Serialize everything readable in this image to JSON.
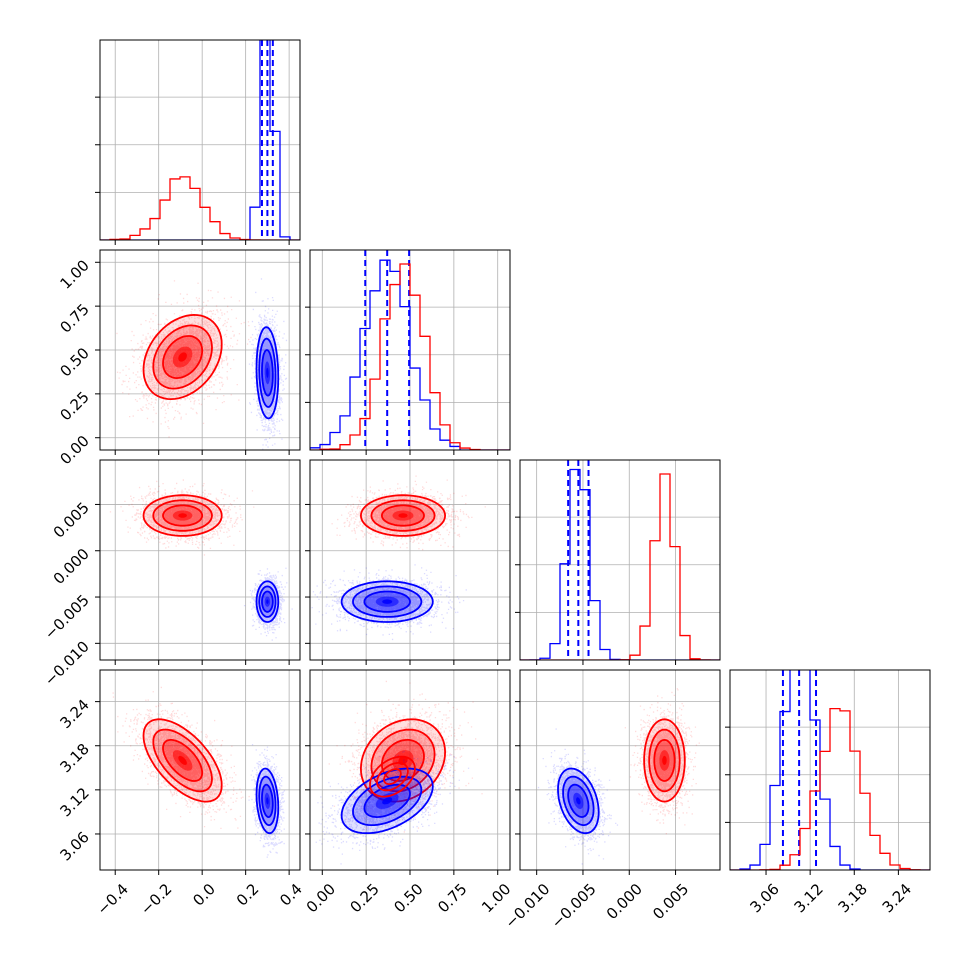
{
  "chart_data": {
    "type": "corner",
    "colors": {
      "primary": "#0000ff",
      "secondary": "#ff0000"
    },
    "parameters": [
      {
        "range": [
          -0.47,
          0.45
        ],
        "ticks": [
          -0.4,
          -0.2,
          0.0,
          0.2,
          0.4
        ],
        "tick_labels": [
          "−0.4",
          "−0.2",
          "0.0",
          "0.2",
          "0.4"
        ]
      },
      {
        "range": [
          -0.07,
          1.07
        ],
        "ticks": [
          0.0,
          0.25,
          0.5,
          0.75,
          1.0
        ],
        "tick_labels": [
          "0.00",
          "0.25",
          "0.50",
          "0.75",
          "1.00"
        ]
      },
      {
        "range": [
          -0.0118,
          0.0098
        ],
        "ticks": [
          -0.01,
          -0.005,
          0.0,
          0.005
        ],
        "tick_labels": [
          "−0.010",
          "−0.005",
          "0.000",
          "0.005"
        ]
      },
      {
        "range": [
          3.011,
          3.283
        ],
        "ticks": [
          3.06,
          3.12,
          3.18,
          3.24
        ],
        "tick_labels": [
          "3.06",
          "3.12",
          "3.18",
          "3.24"
        ]
      }
    ],
    "series": [
      {
        "color": "#0000ff",
        "means": [
          0.3,
          0.37,
          -0.0055,
          3.105
        ],
        "stds": [
          0.025,
          0.13,
          0.0011,
          0.022
        ],
        "quantiles": [
          [
            0.275,
            0.3,
            0.325
          ],
          [
            0.245,
            0.37,
            0.495
          ],
          [
            -0.0066,
            -0.0055,
            -0.0044
          ],
          [
            3.083,
            3.105,
            3.128
          ]
        ],
        "correlations": [
          [
            0,
            1,
            -0.1
          ],
          [
            0,
            2,
            0.0
          ],
          [
            0,
            3,
            -0.2
          ],
          [
            1,
            2,
            0.0
          ],
          [
            1,
            3,
            0.45
          ],
          [
            2,
            3,
            -0.35
          ]
        ]
      },
      {
        "color": "#ff0000",
        "means": [
          -0.09,
          0.46,
          0.0038,
          3.16
        ],
        "stds": [
          0.09,
          0.12,
          0.0011,
          0.028
        ],
        "quantiles": [],
        "correlations": [
          [
            0,
            1,
            0.3
          ],
          [
            0,
            2,
            0.0
          ],
          [
            0,
            3,
            -0.6
          ],
          [
            1,
            2,
            0.0
          ],
          [
            1,
            3,
            0.2
          ],
          [
            2,
            3,
            0.0
          ]
        ]
      }
    ],
    "secondary_small_contours": [
      {
        "pair": [
          1,
          3
        ],
        "mean": [
          0.4,
          3.138
        ],
        "std": [
          0.08,
          0.017
        ],
        "corr": 0.4
      }
    ],
    "grid": true
  }
}
